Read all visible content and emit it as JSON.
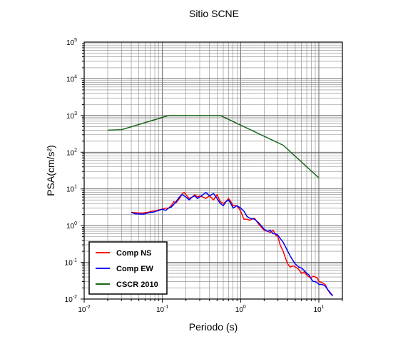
{
  "chart_data": {
    "type": "line",
    "title": "Sitio SCNE",
    "xlabel": "Periodo (s)",
    "ylabel": "PSA(cm/s²)",
    "xscale": "log",
    "yscale": "log",
    "xlim": [
      0.01,
      20
    ],
    "ylim": [
      0.01,
      100000
    ],
    "grid": true,
    "legend_position": "bottom-left",
    "x_tick_labels": [
      {
        "value": 0.01,
        "base": "10",
        "exp": "-2"
      },
      {
        "value": 0.1,
        "base": "10",
        "exp": "-1"
      },
      {
        "value": 1,
        "base": "10",
        "exp": "0"
      },
      {
        "value": 10,
        "base": "10",
        "exp": "1"
      }
    ],
    "y_tick_labels": [
      {
        "value": 0.01,
        "base": "10",
        "exp": "-2"
      },
      {
        "value": 0.1,
        "base": "10",
        "exp": "-1"
      },
      {
        "value": 1,
        "base": "10",
        "exp": "0"
      },
      {
        "value": 10,
        "base": "10",
        "exp": "1"
      },
      {
        "value": 100,
        "base": "10",
        "exp": "2"
      },
      {
        "value": 1000,
        "base": "10",
        "exp": "3"
      },
      {
        "value": 10000,
        "base": "10",
        "exp": "4"
      },
      {
        "value": 100000,
        "base": "10",
        "exp": "5"
      }
    ],
    "series": [
      {
        "name": "Comp NS",
        "color": "#ff0000",
        "points": [
          [
            0.04,
            2.3
          ],
          [
            0.045,
            2.25
          ],
          [
            0.05,
            2.2
          ],
          [
            0.055,
            2.2
          ],
          [
            0.06,
            2.25
          ],
          [
            0.065,
            2.3
          ],
          [
            0.07,
            2.4
          ],
          [
            0.075,
            2.5
          ],
          [
            0.08,
            2.5
          ],
          [
            0.085,
            2.6
          ],
          [
            0.09,
            2.7
          ],
          [
            0.1,
            2.8
          ],
          [
            0.11,
            3.0
          ],
          [
            0.12,
            3.0
          ],
          [
            0.13,
            3.5
          ],
          [
            0.14,
            4.5
          ],
          [
            0.15,
            4.2
          ],
          [
            0.16,
            5.0
          ],
          [
            0.17,
            6.0
          ],
          [
            0.18,
            7.5
          ],
          [
            0.19,
            8.0
          ],
          [
            0.2,
            7.0
          ],
          [
            0.22,
            5.5
          ],
          [
            0.24,
            6.0
          ],
          [
            0.26,
            7.0
          ],
          [
            0.28,
            6.0
          ],
          [
            0.3,
            6.5
          ],
          [
            0.33,
            6.0
          ],
          [
            0.36,
            5.5
          ],
          [
            0.4,
            6.5
          ],
          [
            0.45,
            5.0
          ],
          [
            0.5,
            7.0
          ],
          [
            0.55,
            4.5
          ],
          [
            0.6,
            4.0
          ],
          [
            0.65,
            4.5
          ],
          [
            0.7,
            5.5
          ],
          [
            0.75,
            4.5
          ],
          [
            0.8,
            3.5
          ],
          [
            0.9,
            3.5
          ],
          [
            1.0,
            2.5
          ],
          [
            1.1,
            1.5
          ],
          [
            1.2,
            1.5
          ],
          [
            1.3,
            1.4
          ],
          [
            1.5,
            1.6
          ],
          [
            1.7,
            1.1
          ],
          [
            2.0,
            0.75
          ],
          [
            2.2,
            0.7
          ],
          [
            2.4,
            0.65
          ],
          [
            2.6,
            0.75
          ],
          [
            2.8,
            0.55
          ],
          [
            3.0,
            0.5
          ],
          [
            3.2,
            0.3
          ],
          [
            3.5,
            0.2
          ],
          [
            3.8,
            0.12
          ],
          [
            4.0,
            0.09
          ],
          [
            4.3,
            0.075
          ],
          [
            4.7,
            0.08
          ],
          [
            5.0,
            0.075
          ],
          [
            5.5,
            0.065
          ],
          [
            6.0,
            0.05
          ],
          [
            6.5,
            0.055
          ],
          [
            7.0,
            0.045
          ],
          [
            7.5,
            0.04
          ],
          [
            8.0,
            0.038
          ],
          [
            8.5,
            0.042
          ],
          [
            9.0,
            0.04
          ],
          [
            9.5,
            0.038
          ],
          [
            10,
            0.03
          ],
          [
            11,
            0.028
          ],
          [
            12,
            0.025
          ],
          [
            13,
            0.018
          ],
          [
            14,
            0.014
          ],
          [
            15,
            0.013
          ]
        ]
      },
      {
        "name": "Comp EW",
        "color": "#0000ff",
        "points": [
          [
            0.04,
            2.3
          ],
          [
            0.045,
            2.1
          ],
          [
            0.05,
            2.1
          ],
          [
            0.055,
            2.05
          ],
          [
            0.06,
            2.1
          ],
          [
            0.065,
            2.2
          ],
          [
            0.07,
            2.3
          ],
          [
            0.075,
            2.3
          ],
          [
            0.08,
            2.4
          ],
          [
            0.085,
            2.5
          ],
          [
            0.09,
            2.6
          ],
          [
            0.1,
            2.8
          ],
          [
            0.11,
            2.6
          ],
          [
            0.12,
            3.0
          ],
          [
            0.13,
            3.2
          ],
          [
            0.14,
            3.8
          ],
          [
            0.15,
            4.5
          ],
          [
            0.16,
            5.5
          ],
          [
            0.17,
            6.5
          ],
          [
            0.18,
            7.0
          ],
          [
            0.2,
            6.0
          ],
          [
            0.22,
            5.0
          ],
          [
            0.24,
            6.0
          ],
          [
            0.26,
            6.5
          ],
          [
            0.28,
            5.5
          ],
          [
            0.3,
            6.0
          ],
          [
            0.33,
            7.0
          ],
          [
            0.36,
            8.0
          ],
          [
            0.4,
            6.5
          ],
          [
            0.45,
            7.5
          ],
          [
            0.5,
            5.5
          ],
          [
            0.55,
            4.0
          ],
          [
            0.6,
            3.5
          ],
          [
            0.65,
            4.5
          ],
          [
            0.7,
            5.0
          ],
          [
            0.75,
            4.0
          ],
          [
            0.8,
            3.0
          ],
          [
            0.9,
            3.5
          ],
          [
            1.0,
            3.0
          ],
          [
            1.1,
            2.5
          ],
          [
            1.2,
            1.8
          ],
          [
            1.3,
            1.6
          ],
          [
            1.5,
            1.5
          ],
          [
            1.7,
            1.2
          ],
          [
            2.0,
            0.8
          ],
          [
            2.2,
            0.7
          ],
          [
            2.4,
            0.75
          ],
          [
            2.6,
            0.6
          ],
          [
            2.8,
            0.6
          ],
          [
            3.0,
            0.55
          ],
          [
            3.2,
            0.45
          ],
          [
            3.5,
            0.35
          ],
          [
            3.8,
            0.25
          ],
          [
            4.0,
            0.2
          ],
          [
            4.3,
            0.15
          ],
          [
            4.7,
            0.11
          ],
          [
            5.0,
            0.09
          ],
          [
            5.5,
            0.075
          ],
          [
            6.0,
            0.07
          ],
          [
            6.5,
            0.06
          ],
          [
            7.0,
            0.05
          ],
          [
            7.5,
            0.045
          ],
          [
            8.0,
            0.035
          ],
          [
            8.5,
            0.03
          ],
          [
            9.0,
            0.03
          ],
          [
            9.5,
            0.028
          ],
          [
            10,
            0.025
          ],
          [
            11,
            0.025
          ],
          [
            12,
            0.023
          ],
          [
            13,
            0.018
          ],
          [
            14,
            0.015
          ],
          [
            15,
            0.012
          ]
        ]
      },
      {
        "name": "CSCR 2010",
        "color": "#1a661a",
        "points": [
          [
            0.02,
            400
          ],
          [
            0.03,
            410
          ],
          [
            0.12,
            1000
          ],
          [
            0.55,
            1000
          ],
          [
            3.5,
            155
          ],
          [
            10,
            20
          ]
        ]
      }
    ]
  }
}
